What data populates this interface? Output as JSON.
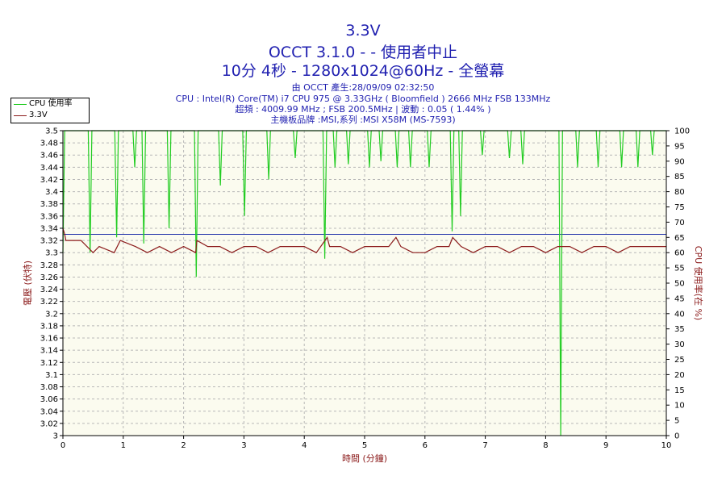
{
  "chart_data": {
    "type": "line",
    "title_lines": [
      "3.3V",
      "OCCT 3.1.0 -  - 使用者中止",
      "10分 4秒 - 1280x1024@60Hz - 全螢幕"
    ],
    "info_lines": [
      "由 OCCT 產生:28/09/09 02:32:50",
      "CPU : Intel(R) Core(TM) i7 CPU 975 @ 3.33GHz ( Bloomfield ) 2666 MHz FSB 133MHz",
      "超頻 : 4009.99 MHz ; FSB 200.5MHz | 波動 : 0.05 ( 1.44% )",
      "主機板品牌 :MSI,系列 :MSI X58M (MS-7593)"
    ],
    "xlabel": "時間 (分鐘)",
    "ylabel_left": "電壓 (伏特)",
    "ylabel_right": "CPU 使用率(在 %)",
    "xlim": [
      0,
      10
    ],
    "ylim_left": [
      3.0,
      3.5
    ],
    "ylim_right": [
      0,
      100
    ],
    "x_ticks": [
      "0",
      "1",
      "2",
      "3",
      "4",
      "5",
      "6",
      "7",
      "8",
      "9",
      "10"
    ],
    "y_left_ticks": [
      "3",
      "3.02",
      "3.04",
      "3.06",
      "3.08",
      "3.1",
      "3.12",
      "3.14",
      "3.16",
      "3.18",
      "3.2",
      "3.22",
      "3.24",
      "3.26",
      "3.28",
      "3.3",
      "3.32",
      "3.34",
      "3.36",
      "3.38",
      "3.4",
      "3.42",
      "3.44",
      "3.46",
      "3.48",
      "3.5"
    ],
    "y_right_ticks": [
      "0",
      "5",
      "10",
      "15",
      "20",
      "25",
      "30",
      "35",
      "40",
      "45",
      "50",
      "55",
      "60",
      "65",
      "70",
      "75",
      "80",
      "85",
      "90",
      "95",
      "100"
    ],
    "reference_line": 3.33,
    "grid": true,
    "legend_position": "top-left",
    "colors": {
      "cpu": "#22cc22",
      "voltage": "#8b1a1a",
      "reference": "#2233aa",
      "plot_bg": "#fbfbef",
      "grid": "#b8b8b8",
      "title": "#1f1fb0",
      "left_axis_label": "#8b1a1a"
    },
    "series": [
      {
        "name": "CPU 使用率",
        "axis": "right",
        "x": [
          0,
          0.03,
          0.06,
          0.42,
          0.45,
          0.48,
          0.86,
          0.89,
          0.92,
          1.16,
          1.19,
          1.22,
          1.31,
          1.34,
          1.37,
          1.73,
          1.76,
          1.79,
          2.18,
          2.21,
          2.24,
          2.58,
          2.61,
          2.64,
          2.98,
          3.01,
          3.04,
          3.38,
          3.41,
          3.44,
          3.82,
          3.85,
          3.88,
          4.31,
          4.34,
          4.37,
          4.48,
          4.51,
          4.54,
          4.7,
          4.73,
          4.76,
          5.05,
          5.08,
          5.11,
          5.24,
          5.27,
          5.3,
          5.51,
          5.54,
          5.57,
          5.73,
          5.76,
          5.79,
          6.04,
          6.07,
          6.1,
          6.42,
          6.45,
          6.48,
          6.56,
          6.59,
          6.62,
          6.92,
          6.95,
          6.98,
          7.37,
          7.4,
          7.43,
          7.59,
          7.62,
          7.65,
          8.22,
          8.25,
          8.28,
          8.5,
          8.53,
          8.56,
          8.84,
          8.87,
          8.9,
          9.23,
          9.26,
          9.29,
          9.5,
          9.53,
          9.56,
          9.74,
          9.77,
          9.8,
          10.0
        ],
        "values": [
          60,
          100,
          100,
          100,
          60,
          100,
          100,
          65,
          100,
          100,
          88,
          100,
          100,
          63,
          100,
          100,
          68,
          100,
          100,
          52,
          100,
          100,
          82,
          100,
          100,
          72,
          100,
          100,
          84,
          100,
          100,
          91,
          100,
          100,
          58,
          100,
          100,
          88,
          100,
          100,
          89,
          100,
          100,
          88,
          100,
          100,
          90,
          100,
          100,
          88,
          100,
          100,
          88,
          100,
          100,
          88,
          100,
          100,
          67,
          100,
          100,
          72,
          100,
          100,
          92,
          100,
          100,
          91,
          100,
          100,
          89,
          100,
          100,
          0,
          100,
          100,
          88,
          100,
          100,
          88,
          100,
          100,
          88,
          100,
          100,
          88,
          100,
          100,
          92,
          100,
          100
        ]
      },
      {
        "name": "3.3V",
        "axis": "left",
        "x": [
          0,
          0.03,
          0.05,
          0.3,
          0.5,
          0.6,
          0.85,
          0.95,
          1.2,
          1.4,
          1.6,
          1.8,
          2.0,
          2.2,
          2.22,
          2.4,
          2.6,
          2.8,
          3.0,
          3.2,
          3.4,
          3.6,
          3.8,
          4.0,
          4.2,
          4.38,
          4.42,
          4.6,
          4.8,
          5.0,
          5.2,
          5.4,
          5.52,
          5.6,
          5.8,
          6.0,
          6.2,
          6.4,
          6.46,
          6.6,
          6.8,
          7.0,
          7.2,
          7.4,
          7.6,
          7.8,
          8.0,
          8.2,
          8.4,
          8.6,
          8.8,
          9.0,
          9.2,
          9.4,
          9.6,
          9.8,
          10.0
        ],
        "values": [
          3.34,
          3.33,
          3.32,
          3.32,
          3.3,
          3.31,
          3.3,
          3.32,
          3.31,
          3.3,
          3.31,
          3.3,
          3.31,
          3.3,
          3.32,
          3.31,
          3.31,
          3.3,
          3.31,
          3.31,
          3.3,
          3.31,
          3.31,
          3.31,
          3.3,
          3.325,
          3.31,
          3.31,
          3.3,
          3.31,
          3.31,
          3.31,
          3.325,
          3.31,
          3.3,
          3.3,
          3.31,
          3.31,
          3.325,
          3.31,
          3.3,
          3.31,
          3.31,
          3.3,
          3.31,
          3.31,
          3.3,
          3.31,
          3.31,
          3.3,
          3.31,
          3.31,
          3.3,
          3.31,
          3.31,
          3.31,
          3.31
        ]
      }
    ]
  }
}
